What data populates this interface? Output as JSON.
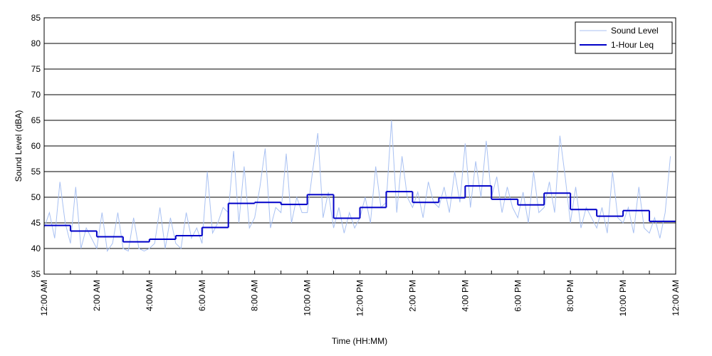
{
  "chart_data": {
    "type": "line",
    "y_label": "Sound Level (dBA)",
    "x_label": "Time (HH:MM)",
    "xlim": [
      0,
      24
    ],
    "ylim": [
      35,
      85
    ],
    "yticks": [
      35,
      40,
      45,
      50,
      55,
      60,
      65,
      70,
      75,
      80,
      85
    ],
    "xticks": [
      {
        "value": 0,
        "label": "12:00 AM"
      },
      {
        "value": 2,
        "label": "2:00 AM"
      },
      {
        "value": 4,
        "label": "4:00 AM"
      },
      {
        "value": 6,
        "label": "6:00 AM"
      },
      {
        "value": 8,
        "label": "8:00 AM"
      },
      {
        "value": 10,
        "label": "10:00 AM"
      },
      {
        "value": 12,
        "label": "12:00 PM"
      },
      {
        "value": 14,
        "label": "2:00 PM"
      },
      {
        "value": 16,
        "label": "4:00 PM"
      },
      {
        "value": 18,
        "label": "6:00 PM"
      },
      {
        "value": 20,
        "label": "8:00 PM"
      },
      {
        "value": 22,
        "label": "10:00 PM"
      },
      {
        "value": 24,
        "label": "12:00 AM"
      }
    ],
    "xminorticks": [
      1,
      3,
      5,
      7,
      9,
      11,
      13,
      15,
      17,
      19,
      21,
      23
    ],
    "grid": true,
    "legend": "upper right",
    "series": [
      {
        "name": "Sound Level",
        "color": "#a9c1f2",
        "style": "line",
        "x": [
          0,
          0.2,
          0.4,
          0.6,
          0.8,
          1,
          1.2,
          1.4,
          1.6,
          1.8,
          2,
          2.2,
          2.4,
          2.6,
          2.8,
          3,
          3.2,
          3.4,
          3.6,
          3.8,
          4,
          4.2,
          4.4,
          4.6,
          4.8,
          5,
          5.2,
          5.4,
          5.6,
          5.8,
          6,
          6.2,
          6.4,
          6.6,
          6.8,
          7,
          7.2,
          7.4,
          7.6,
          7.8,
          8,
          8.2,
          8.4,
          8.6,
          8.8,
          9,
          9.2,
          9.4,
          9.6,
          9.8,
          10,
          10.2,
          10.4,
          10.6,
          10.8,
          11,
          11.2,
          11.4,
          11.6,
          11.8,
          12,
          12.2,
          12.4,
          12.6,
          12.8,
          13,
          13.2,
          13.4,
          13.6,
          13.8,
          14,
          14.2,
          14.4,
          14.6,
          14.8,
          15,
          15.2,
          15.4,
          15.6,
          15.8,
          16,
          16.2,
          16.4,
          16.6,
          16.8,
          17,
          17.2,
          17.4,
          17.6,
          17.8,
          18,
          18.2,
          18.4,
          18.6,
          18.8,
          19,
          19.2,
          19.4,
          19.6,
          19.8,
          20,
          20.2,
          20.4,
          20.6,
          20.8,
          21,
          21.2,
          21.4,
          21.6,
          21.8,
          22,
          22.2,
          22.4,
          22.6,
          22.8,
          23,
          23.2,
          23.4,
          23.6,
          23.8
        ],
        "values": [
          44,
          47,
          42,
          53,
          45,
          41,
          52,
          40,
          44,
          42,
          40,
          47,
          39.5,
          41,
          47,
          40,
          39.5,
          46,
          40,
          39.5,
          40,
          41,
          48,
          40,
          46,
          41,
          40,
          47,
          42,
          44,
          41,
          55,
          43,
          45,
          48,
          47,
          59,
          45,
          56,
          44,
          46,
          52,
          59.5,
          44,
          48,
          47,
          58.5,
          45,
          50,
          47,
          47,
          55,
          62.5,
          46,
          51,
          44,
          48,
          43,
          47,
          44,
          46,
          50,
          45,
          56,
          48,
          49,
          65,
          47,
          58,
          50,
          48,
          51,
          46,
          53,
          49,
          48,
          52,
          47,
          55,
          49,
          60.5,
          48,
          57,
          50,
          61,
          50,
          54,
          47,
          52,
          48,
          46,
          51,
          45,
          55,
          47,
          48,
          53,
          47,
          62,
          54,
          45,
          52,
          44,
          48,
          46,
          44,
          48,
          43,
          55,
          46,
          45,
          48,
          43,
          52,
          44,
          43,
          46,
          42,
          47,
          58
        ]
      },
      {
        "name": "1-Hour Leq",
        "color": "#0000c8",
        "style": "steps-post",
        "x": [
          0,
          1,
          2,
          3,
          4,
          5,
          6,
          7,
          8,
          9,
          10,
          11,
          12,
          13,
          14,
          15,
          16,
          17,
          18,
          19,
          20,
          21,
          22,
          23
        ],
        "values": [
          44.5,
          43.4,
          42.3,
          41.3,
          41.8,
          42.5,
          44.1,
          48.8,
          49.0,
          48.6,
          50.5,
          45.9,
          48.0,
          51.1,
          49.0,
          49.9,
          52.2,
          49.6,
          48.5,
          50.8,
          47.6,
          46.3,
          47.4,
          45.3
        ]
      }
    ]
  }
}
